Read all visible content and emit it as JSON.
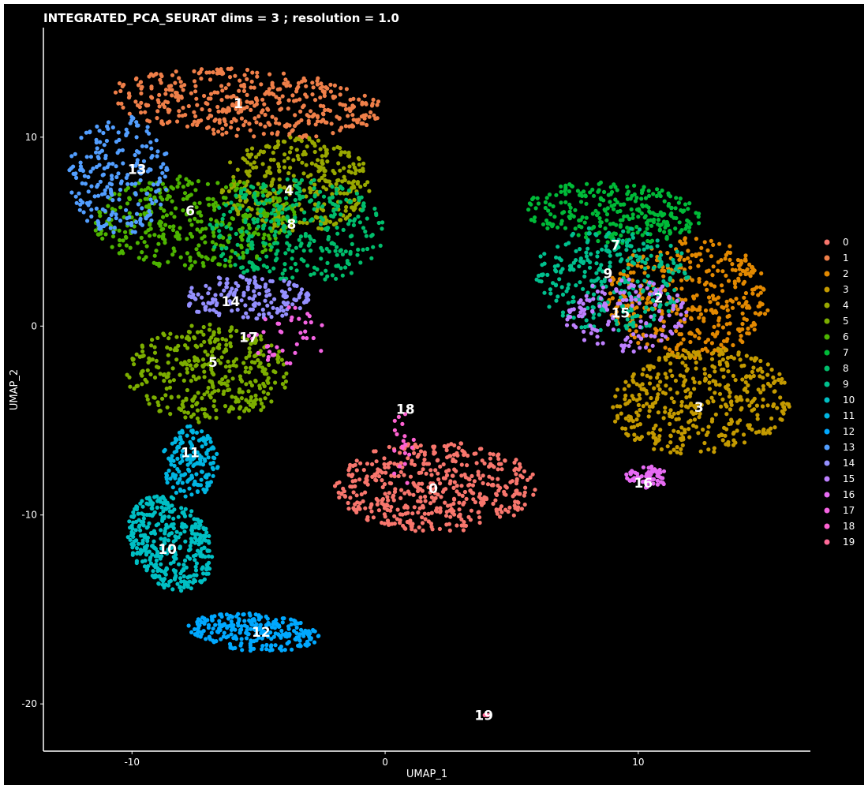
{
  "chart_data": {
    "type": "scatter",
    "title": "INTEGRATED_PCA_SEURAT dims =  3 ; resolution = 1.0",
    "xlabel": "UMAP_1",
    "ylabel": "UMAP_2",
    "xlim": [
      -13.5,
      16.8
    ],
    "ylim": [
      -22.5,
      15.8
    ],
    "xticks": [
      -10,
      0,
      10
    ],
    "yticks": [
      -20,
      -10,
      0,
      10
    ],
    "background": "#000000",
    "grid": false,
    "legend_position": "right",
    "series": [
      {
        "name": "0",
        "color": "#F8766D",
        "shape": "ellipse",
        "center": [
          2.0,
          -8.5
        ],
        "radius": [
          4.0,
          2.4
        ],
        "rotation": 0,
        "count": 480
      },
      {
        "name": "1",
        "color": "#EF7F49",
        "shape": "ellipse",
        "center": [
          -5.5,
          11.8
        ],
        "radius": [
          5.5,
          1.8
        ],
        "rotation": -5,
        "count": 420
      },
      {
        "name": "2",
        "color": "#E38900",
        "shape": "ellipse",
        "center": [
          12.0,
          1.5
        ],
        "radius": [
          3.2,
          3.2
        ],
        "rotation": 0,
        "count": 380
      },
      {
        "name": "3",
        "color": "#C49A00",
        "shape": "ellipse",
        "center": [
          12.5,
          -4.0
        ],
        "radius": [
          3.6,
          2.8
        ],
        "rotation": 10,
        "count": 420
      },
      {
        "name": "4",
        "color": "#99A800",
        "shape": "ellipse",
        "center": [
          -3.5,
          7.5
        ],
        "radius": [
          3.0,
          2.5
        ],
        "rotation": 0,
        "count": 340
      },
      {
        "name": "5",
        "color": "#7CAE00",
        "shape": "ellipse",
        "center": [
          -7.0,
          -2.5
        ],
        "radius": [
          3.2,
          2.6
        ],
        "rotation": 0,
        "count": 360
      },
      {
        "name": "6",
        "color": "#4DB400",
        "shape": "ellipse",
        "center": [
          -7.5,
          5.5
        ],
        "radius": [
          4.0,
          2.5
        ],
        "rotation": 0,
        "count": 360
      },
      {
        "name": "7",
        "color": "#00BA38",
        "shape": "ellipse",
        "center": [
          9.0,
          6.0
        ],
        "radius": [
          3.5,
          1.6
        ],
        "rotation": -5,
        "count": 280
      },
      {
        "name": "8",
        "color": "#00BE6C",
        "shape": "ellipse",
        "center": [
          -3.5,
          5.0
        ],
        "radius": [
          3.5,
          2.8
        ],
        "rotation": 0,
        "count": 320
      },
      {
        "name": "9",
        "color": "#00C08E",
        "shape": "ellipse",
        "center": [
          9.0,
          2.5
        ],
        "radius": [
          3.2,
          2.8
        ],
        "rotation": 0,
        "count": 300
      },
      {
        "name": "10",
        "color": "#00BFC4",
        "shape": "ellipse",
        "center": [
          -8.5,
          -11.5
        ],
        "radius": [
          1.6,
          2.6
        ],
        "rotation": 15,
        "count": 380
      },
      {
        "name": "11",
        "color": "#00B5E2",
        "shape": "ellipse",
        "center": [
          -7.7,
          -7.2
        ],
        "radius": [
          1.1,
          1.9
        ],
        "rotation": 0,
        "count": 160
      },
      {
        "name": "12",
        "color": "#00A8FF",
        "shape": "ellipse",
        "center": [
          -5.2,
          -16.2
        ],
        "radius": [
          2.6,
          1.0
        ],
        "rotation": -5,
        "count": 260
      },
      {
        "name": "13",
        "color": "#529EFF",
        "shape": "ellipse",
        "center": [
          -10.5,
          8.0
        ],
        "radius": [
          2.0,
          3.2
        ],
        "rotation": 0,
        "count": 220
      },
      {
        "name": "14",
        "color": "#9590FF",
        "shape": "ellipse",
        "center": [
          -5.5,
          1.5
        ],
        "radius": [
          2.6,
          1.2
        ],
        "rotation": 0,
        "count": 160
      },
      {
        "name": "15",
        "color": "#BE80FF",
        "shape": "ellipse",
        "center": [
          9.5,
          0.5
        ],
        "radius": [
          2.5,
          2.0
        ],
        "rotation": 0,
        "count": 140
      },
      {
        "name": "16",
        "color": "#E76BF3",
        "shape": "ellipse",
        "center": [
          10.4,
          -8.0
        ],
        "radius": [
          0.9,
          0.6
        ],
        "rotation": 0,
        "count": 60
      },
      {
        "name": "17",
        "color": "#F564E3",
        "shape": "ellipse",
        "center": [
          -3.8,
          -0.5
        ],
        "radius": [
          1.8,
          1.5
        ],
        "rotation": 0,
        "count": 40
      },
      {
        "name": "18",
        "color": "#FD61D1",
        "shape": "ellipse",
        "center": [
          0.7,
          -6.5
        ],
        "radius": [
          0.5,
          2.0
        ],
        "rotation": 0,
        "count": 20
      },
      {
        "name": "19",
        "color": "#FF6A98",
        "shape": "ellipse",
        "center": [
          4.0,
          -20.6
        ],
        "radius": [
          0.1,
          0.05
        ],
        "rotation": 0,
        "count": 3
      }
    ],
    "cluster_labels": [
      {
        "text": "0",
        "x": 1.9,
        "y": -8.6
      },
      {
        "text": "1",
        "x": -5.8,
        "y": 11.8
      },
      {
        "text": "2",
        "x": 10.8,
        "y": 1.5
      },
      {
        "text": "3",
        "x": 12.4,
        "y": -4.3
      },
      {
        "text": "4",
        "x": -3.8,
        "y": 7.2
      },
      {
        "text": "5",
        "x": -6.8,
        "y": -1.9
      },
      {
        "text": "6",
        "x": -7.7,
        "y": 6.1
      },
      {
        "text": "7",
        "x": 9.1,
        "y": 4.3
      },
      {
        "text": "8",
        "x": -3.7,
        "y": 5.4
      },
      {
        "text": "9",
        "x": 8.8,
        "y": 2.8
      },
      {
        "text": "10",
        "x": -8.6,
        "y": -11.8
      },
      {
        "text": "11",
        "x": -7.7,
        "y": -6.7
      },
      {
        "text": "12",
        "x": -4.9,
        "y": -16.2
      },
      {
        "text": "13",
        "x": -9.8,
        "y": 8.3
      },
      {
        "text": "14",
        "x": -6.1,
        "y": 1.3
      },
      {
        "text": "15",
        "x": 9.3,
        "y": 0.7
      },
      {
        "text": "16",
        "x": 10.2,
        "y": -8.3
      },
      {
        "text": "17",
        "x": -5.4,
        "y": -0.6
      },
      {
        "text": "18",
        "x": 0.8,
        "y": -4.4
      },
      {
        "text": "19",
        "x": 3.9,
        "y": -20.6
      }
    ]
  }
}
